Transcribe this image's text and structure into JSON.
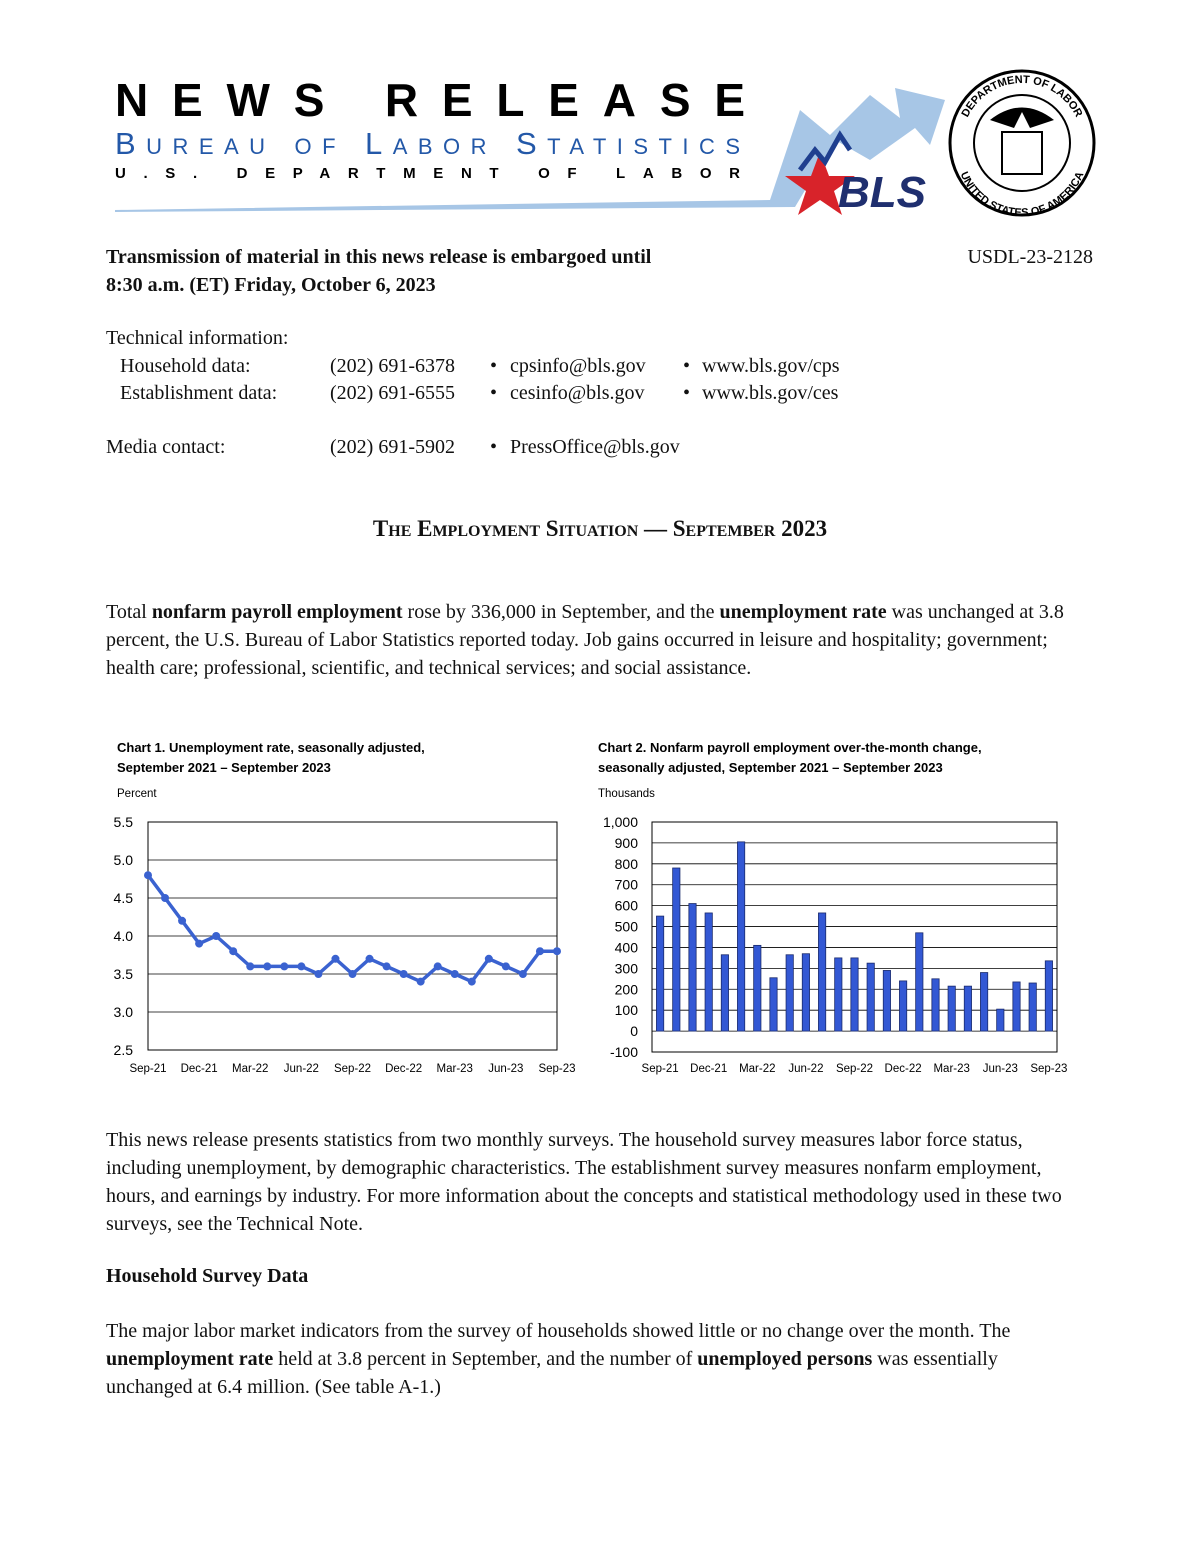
{
  "header": {
    "title": "NEWS RELEASE",
    "agency": "Bureau of Labor Statistics",
    "department": "U.S. DEPARTMENT OF LABOR",
    "logo": "BLS",
    "seal_top": "DEPARTMENT OF LABOR",
    "seal_bottom": "UNITED STATES OF AMERICA"
  },
  "embargo": {
    "lines": [
      "Transmission of material in this news release is embargoed until",
      "8:30 a.m. (ET) Friday, October 6, 2023"
    ],
    "release_number": "USDL-23-2128"
  },
  "contacts": {
    "heading": "Technical information:",
    "separator": "•",
    "rows": [
      [
        "Household data:",
        "(202) 691-6378",
        "cpsinfo@bls.gov",
        "www.bls.gov/cps"
      ],
      [
        "Establishment data:",
        "(202) 691-6555",
        "cesinfo@bls.gov",
        "www.bls.gov/ces"
      ]
    ],
    "media": [
      "Media contact:",
      "(202) 691-5902",
      "PressOffice@bls.gov"
    ]
  },
  "release_title": "The Employment Situation — September 2023",
  "intro": [
    {
      "text": "Total "
    },
    {
      "text": "nonfarm payroll employment",
      "bold": true
    },
    {
      "text": " rose by 336,000 in September, and the "
    },
    {
      "text": "unemployment rate",
      "bold": true
    },
    {
      "text": " was unchanged at 3.8 percent, the U.S. Bureau of Labor Statistics reported today. Job gains occurred in leisure and hospitality; government; health care; professional, scientific, and technical services; and social assistance."
    }
  ],
  "surveys_paragraph": "This news release presents statistics from two monthly surveys. The household survey measures labor force status, including unemployment, by demographic characteristics. The establishment survey measures nonfarm employment, hours, and earnings by industry. For more information about the concepts and statistical methodology used in these two surveys, see the Technical Note.",
  "section_heading": "Household Survey Data",
  "household": [
    {
      "text": "The major labor market indicators from the survey of households showed little or no change over the month. The "
    },
    {
      "text": "unemployment rate",
      "bold": true
    },
    {
      "text": " held at 3.8 percent in September, and the number of "
    },
    {
      "text": "unemployed persons",
      "bold": true
    },
    {
      "text": " was essentially unchanged at 6.4 million. (See table A-1.)"
    }
  ],
  "chart_data": [
    {
      "type": "line",
      "title": "Chart 1. Unemployment rate, seasonally adjusted,",
      "subtitle": "September 2021 – September 2023",
      "y_label": "Percent",
      "categories": [
        "Sep-21",
        null,
        null,
        "Dec-21",
        null,
        null,
        "Mar-22",
        null,
        null,
        "Jun-22",
        null,
        null,
        "Sep-22",
        null,
        null,
        "Dec-22",
        null,
        null,
        "Mar-23",
        null,
        null,
        "Jun-23",
        null,
        null,
        "Sep-23"
      ],
      "values": [
        4.8,
        4.5,
        4.2,
        3.9,
        4.0,
        3.8,
        3.6,
        3.6,
        3.6,
        3.6,
        3.5,
        3.7,
        3.5,
        3.7,
        3.6,
        3.5,
        3.4,
        3.6,
        3.5,
        3.4,
        3.7,
        3.6,
        3.5,
        3.8,
        3.8
      ],
      "color": "#3a62d0",
      "ylim": [
        2.5,
        5.5
      ],
      "yticks": [
        2.5,
        {
          "value": 3,
          "label": "3.0"
        },
        3.5,
        {
          "value": 4,
          "label": "4.0"
        },
        4.5,
        {
          "value": 5,
          "label": "5.0"
        },
        5.5
      ],
      "grid": true
    },
    {
      "type": "bar",
      "title": "Chart 2. Nonfarm payroll employment over-the-month change,",
      "subtitle": "seasonally adjusted, September 2021 – September 2023",
      "y_label": "Thousands",
      "categories": [
        "Sep-21",
        null,
        null,
        "Dec-21",
        null,
        null,
        "Mar-22",
        null,
        null,
        "Jun-22",
        null,
        null,
        "Sep-22",
        null,
        null,
        "Dec-22",
        null,
        null,
        "Mar-23",
        null,
        null,
        "Jun-23",
        null,
        null,
        "Sep-23"
      ],
      "values": [
        550,
        780,
        610,
        565,
        365,
        905,
        410,
        255,
        365,
        370,
        565,
        350,
        350,
        325,
        290,
        240,
        470,
        250,
        215,
        215,
        280,
        105,
        235,
        230,
        336
      ],
      "color": "#3358d4",
      "ylim": [
        -100,
        1000
      ],
      "yticks": [
        -100,
        0,
        100,
        200,
        300,
        400,
        500,
        600,
        700,
        800,
        900,
        {
          "value": 1000,
          "label": "1,000"
        }
      ],
      "grid": true
    }
  ]
}
